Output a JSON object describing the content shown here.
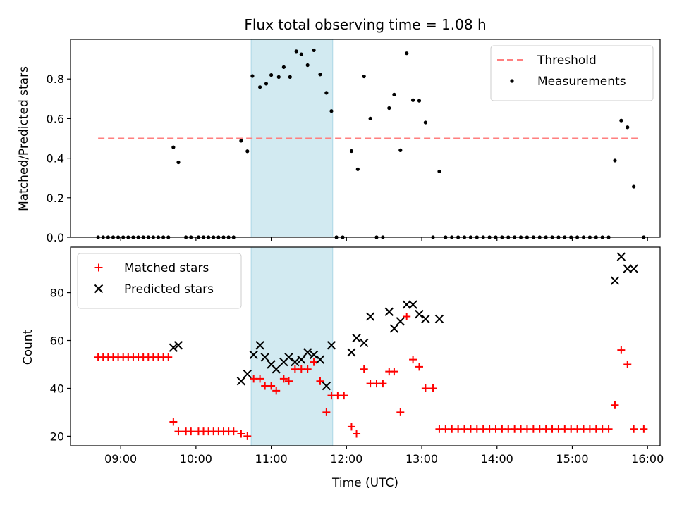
{
  "title": "Flux total observing time = 1.08 h",
  "chart_data": [
    {
      "type": "scatter",
      "ylabel": "Matched/Predicted stars",
      "xlim": [
        "08:20",
        "16:10"
      ],
      "ylim": [
        0,
        1.0
      ],
      "yticks": [
        0.0,
        0.2,
        0.4,
        0.6,
        0.8
      ],
      "ytick_labels": [
        "0.0",
        "0.2",
        "0.4",
        "0.6",
        "0.8"
      ],
      "legend_position": "top-right",
      "highlight_span": {
        "start": "10:44",
        "end": "11:49",
        "color": "#add8e6"
      },
      "threshold": {
        "name": "Threshold",
        "value": 0.5,
        "x_start": "08:42",
        "x_end": "15:54",
        "color": "#ff7f7f",
        "style": "dashed"
      },
      "series": [
        {
          "name": "Measurements",
          "color": "#000000",
          "marker": "dot",
          "points": [
            [
              "08:42",
              0
            ],
            [
              "08:46",
              0
            ],
            [
              "08:50",
              0
            ],
            [
              "08:54",
              0
            ],
            [
              "08:58",
              0
            ],
            [
              "09:02",
              0
            ],
            [
              "09:06",
              0
            ],
            [
              "09:10",
              0
            ],
            [
              "09:14",
              0
            ],
            [
              "09:18",
              0
            ],
            [
              "09:22",
              0
            ],
            [
              "09:26",
              0
            ],
            [
              "09:30",
              0
            ],
            [
              "09:34",
              0
            ],
            [
              "09:38",
              0
            ],
            [
              "09:42",
              0.455
            ],
            [
              "09:46",
              0.379
            ],
            [
              "09:52",
              0
            ],
            [
              "09:56",
              0
            ],
            [
              "10:02",
              0
            ],
            [
              "10:06",
              0
            ],
            [
              "10:10",
              0
            ],
            [
              "10:14",
              0
            ],
            [
              "10:18",
              0
            ],
            [
              "10:22",
              0
            ],
            [
              "10:26",
              0
            ],
            [
              "10:30",
              0
            ],
            [
              "10:36",
              0.488
            ],
            [
              "10:41",
              0.435
            ],
            [
              "10:45",
              0.815
            ],
            [
              "10:51",
              0.759
            ],
            [
              "10:56",
              0.776
            ],
            [
              "11:00",
              0.82
            ],
            [
              "11:06",
              0.81
            ],
            [
              "11:10",
              0.86
            ],
            [
              "11:15",
              0.81
            ],
            [
              "11:20",
              0.94
            ],
            [
              "11:24",
              0.925
            ],
            [
              "11:29",
              0.87
            ],
            [
              "11:34",
              0.945
            ],
            [
              "11:39",
              0.823
            ],
            [
              "11:44",
              0.73
            ],
            [
              "11:48",
              0.638
            ],
            [
              "11:52",
              0
            ],
            [
              "11:57",
              0
            ],
            [
              "12:04",
              0.436
            ],
            [
              "12:09",
              0.344
            ],
            [
              "12:14",
              0.813
            ],
            [
              "12:19",
              0.6
            ],
            [
              "12:24",
              0
            ],
            [
              "12:29",
              0
            ],
            [
              "12:34",
              0.653
            ],
            [
              "12:38",
              0.721
            ],
            [
              "12:43",
              0.44
            ],
            [
              "12:48",
              0.93
            ],
            [
              "12:53",
              0.693
            ],
            [
              "12:58",
              0.69
            ],
            [
              "13:03",
              0.58
            ],
            [
              "13:09",
              0
            ],
            [
              "13:14",
              0.333
            ],
            [
              "13:19",
              0
            ],
            [
              "13:24",
              0
            ],
            [
              "13:29",
              0
            ],
            [
              "13:34",
              0
            ],
            [
              "13:39",
              0
            ],
            [
              "13:44",
              0
            ],
            [
              "13:49",
              0
            ],
            [
              "13:54",
              0
            ],
            [
              "13:59",
              0
            ],
            [
              "14:04",
              0
            ],
            [
              "14:09",
              0
            ],
            [
              "14:14",
              0
            ],
            [
              "14:19",
              0
            ],
            [
              "14:24",
              0
            ],
            [
              "14:29",
              0
            ],
            [
              "14:34",
              0
            ],
            [
              "14:39",
              0
            ],
            [
              "14:44",
              0
            ],
            [
              "14:49",
              0
            ],
            [
              "14:54",
              0
            ],
            [
              "14:59",
              0
            ],
            [
              "15:04",
              0
            ],
            [
              "15:09",
              0
            ],
            [
              "15:14",
              0
            ],
            [
              "15:19",
              0
            ],
            [
              "15:24",
              0
            ],
            [
              "15:29",
              0
            ],
            [
              "15:34",
              0.388
            ],
            [
              "15:39",
              0.59
            ],
            [
              "15:44",
              0.556
            ],
            [
              "15:49",
              0.256
            ],
            [
              "15:57",
              0
            ]
          ]
        }
      ]
    },
    {
      "type": "scatter",
      "xlabel": "Time (UTC)",
      "ylabel": "Count",
      "xlim": [
        "08:20",
        "16:10"
      ],
      "ylim": [
        16,
        99
      ],
      "yticks": [
        20,
        40,
        60,
        80
      ],
      "ytick_labels": [
        "20",
        "40",
        "60",
        "80"
      ],
      "xticks": [
        "09:00",
        "10:00",
        "11:00",
        "12:00",
        "13:00",
        "14:00",
        "15:00",
        "16:00"
      ],
      "legend_position": "top-left",
      "highlight_span": {
        "start": "10:44",
        "end": "11:49",
        "color": "#add8e6"
      },
      "series": [
        {
          "name": "Matched stars",
          "color": "#ff0000",
          "marker": "plus",
          "points": [
            [
              "08:42",
              53
            ],
            [
              "08:46",
              53
            ],
            [
              "08:50",
              53
            ],
            [
              "08:54",
              53
            ],
            [
              "08:58",
              53
            ],
            [
              "09:02",
              53
            ],
            [
              "09:06",
              53
            ],
            [
              "09:10",
              53
            ],
            [
              "09:14",
              53
            ],
            [
              "09:18",
              53
            ],
            [
              "09:22",
              53
            ],
            [
              "09:26",
              53
            ],
            [
              "09:30",
              53
            ],
            [
              "09:34",
              53
            ],
            [
              "09:38",
              53
            ],
            [
              "09:42",
              26
            ],
            [
              "09:46",
              22
            ],
            [
              "09:52",
              22
            ],
            [
              "09:56",
              22
            ],
            [
              "10:02",
              22
            ],
            [
              "10:06",
              22
            ],
            [
              "10:10",
              22
            ],
            [
              "10:14",
              22
            ],
            [
              "10:18",
              22
            ],
            [
              "10:22",
              22
            ],
            [
              "10:26",
              22
            ],
            [
              "10:30",
              22
            ],
            [
              "10:36",
              21
            ],
            [
              "10:41",
              20
            ],
            [
              "10:46",
              44
            ],
            [
              "10:51",
              44
            ],
            [
              "10:55",
              41
            ],
            [
              "11:00",
              41
            ],
            [
              "11:04",
              39
            ],
            [
              "11:10",
              44
            ],
            [
              "11:14",
              43
            ],
            [
              "11:19",
              48
            ],
            [
              "11:24",
              48
            ],
            [
              "11:29",
              48
            ],
            [
              "11:34",
              51
            ],
            [
              "11:39",
              43
            ],
            [
              "11:44",
              30
            ],
            [
              "11:48",
              37
            ],
            [
              "11:53",
              37
            ],
            [
              "11:58",
              37
            ],
            [
              "12:04",
              24
            ],
            [
              "12:08",
              21
            ],
            [
              "12:14",
              48
            ],
            [
              "12:19",
              42
            ],
            [
              "12:24",
              42
            ],
            [
              "12:29",
              42
            ],
            [
              "12:34",
              47
            ],
            [
              "12:38",
              47
            ],
            [
              "12:43",
              30
            ],
            [
              "12:48",
              70
            ],
            [
              "12:53",
              52
            ],
            [
              "12:58",
              49
            ],
            [
              "13:03",
              40
            ],
            [
              "13:09",
              40
            ],
            [
              "13:14",
              23
            ],
            [
              "13:19",
              23
            ],
            [
              "13:24",
              23
            ],
            [
              "13:29",
              23
            ],
            [
              "13:34",
              23
            ],
            [
              "13:39",
              23
            ],
            [
              "13:44",
              23
            ],
            [
              "13:49",
              23
            ],
            [
              "13:54",
              23
            ],
            [
              "13:59",
              23
            ],
            [
              "14:04",
              23
            ],
            [
              "14:09",
              23
            ],
            [
              "14:14",
              23
            ],
            [
              "14:19",
              23
            ],
            [
              "14:24",
              23
            ],
            [
              "14:29",
              23
            ],
            [
              "14:34",
              23
            ],
            [
              "14:39",
              23
            ],
            [
              "14:44",
              23
            ],
            [
              "14:49",
              23
            ],
            [
              "14:54",
              23
            ],
            [
              "14:59",
              23
            ],
            [
              "15:04",
              23
            ],
            [
              "15:09",
              23
            ],
            [
              "15:14",
              23
            ],
            [
              "15:19",
              23
            ],
            [
              "15:24",
              23
            ],
            [
              "15:29",
              23
            ],
            [
              "15:34",
              33
            ],
            [
              "15:39",
              56
            ],
            [
              "15:44",
              50
            ],
            [
              "15:49",
              23
            ],
            [
              "15:57",
              23
            ]
          ]
        },
        {
          "name": "Predicted stars",
          "color": "#000000",
          "marker": "x",
          "points": [
            [
              "09:42",
              57
            ],
            [
              "09:46",
              58
            ],
            [
              "10:36",
              43
            ],
            [
              "10:41",
              46
            ],
            [
              "10:46",
              54
            ],
            [
              "10:51",
              58
            ],
            [
              "10:55",
              53
            ],
            [
              "11:00",
              50
            ],
            [
              "11:04",
              48
            ],
            [
              "11:10",
              51
            ],
            [
              "11:14",
              53
            ],
            [
              "11:19",
              51
            ],
            [
              "11:24",
              52
            ],
            [
              "11:29",
              55
            ],
            [
              "11:34",
              54
            ],
            [
              "11:39",
              52
            ],
            [
              "11:44",
              41
            ],
            [
              "11:48",
              58
            ],
            [
              "12:04",
              55
            ],
            [
              "12:08",
              61
            ],
            [
              "12:14",
              59
            ],
            [
              "12:19",
              70
            ],
            [
              "12:34",
              72
            ],
            [
              "12:38",
              65
            ],
            [
              "12:43",
              68
            ],
            [
              "12:48",
              75
            ],
            [
              "12:53",
              75
            ],
            [
              "12:58",
              71
            ],
            [
              "13:03",
              69
            ],
            [
              "13:14",
              69
            ],
            [
              "15:34",
              85
            ],
            [
              "15:39",
              95
            ],
            [
              "15:44",
              90
            ],
            [
              "15:49",
              90
            ]
          ]
        }
      ]
    }
  ]
}
